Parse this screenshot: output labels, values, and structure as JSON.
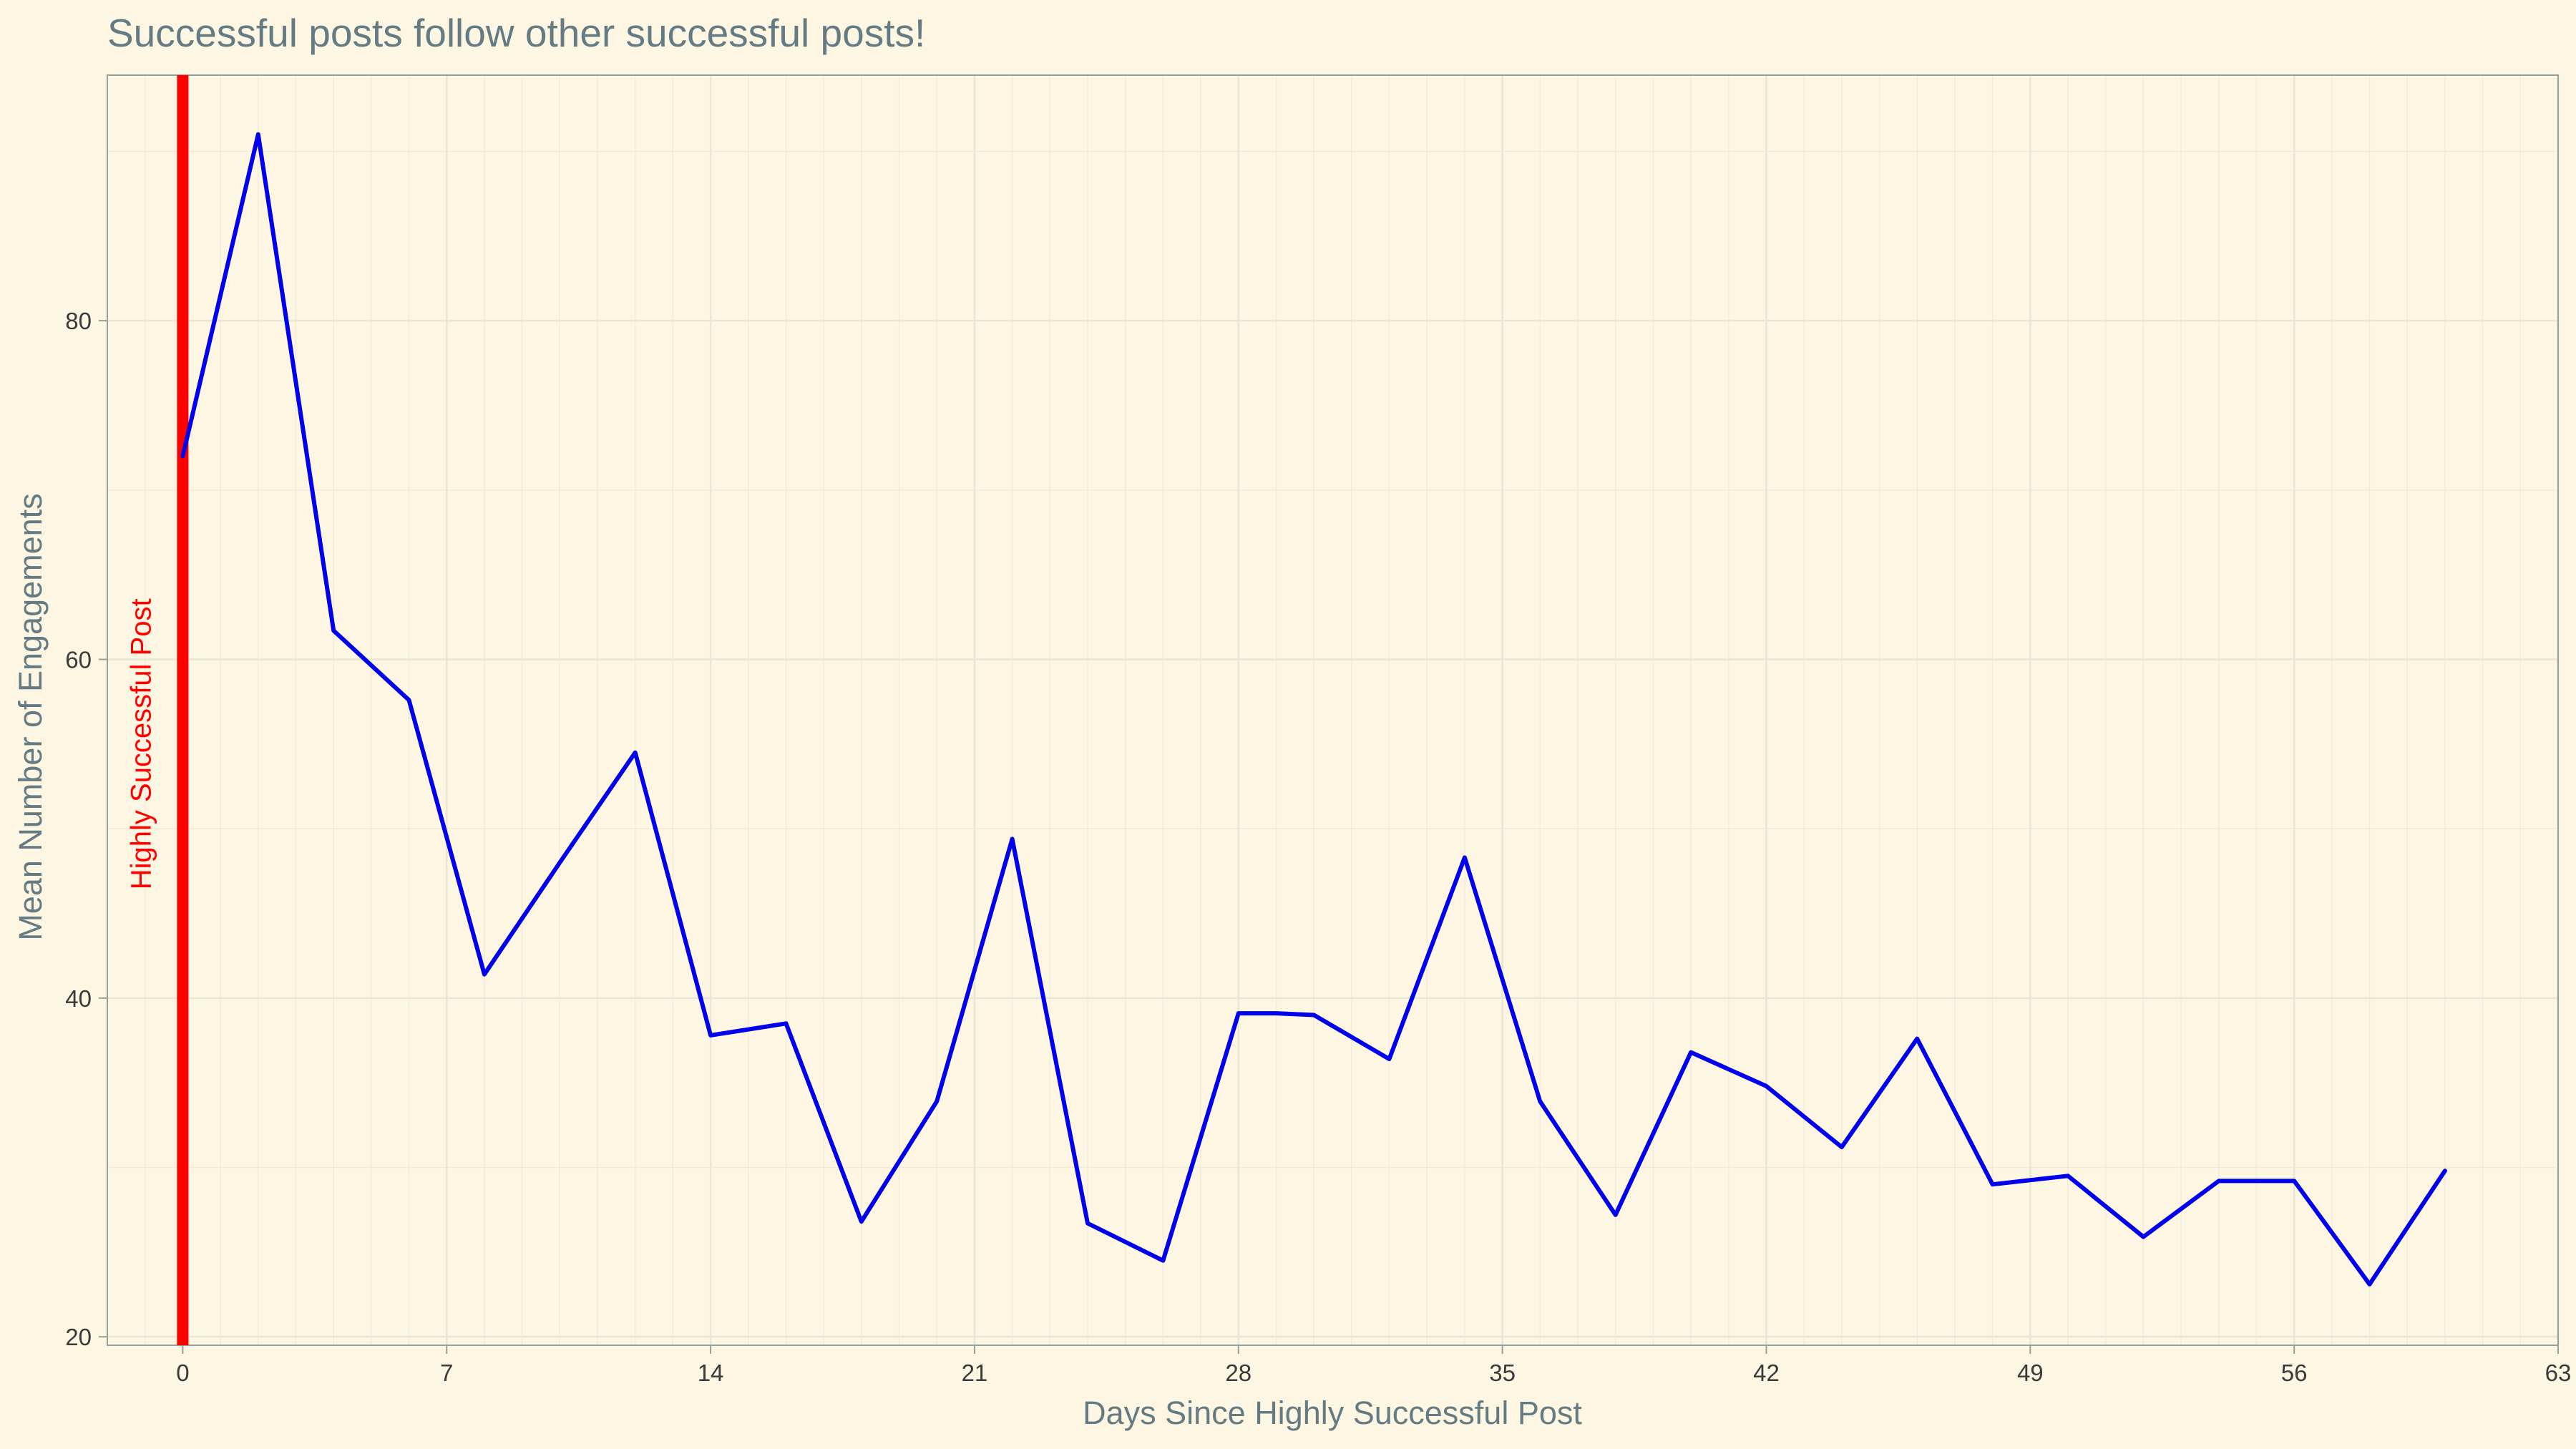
{
  "chart_data": {
    "type": "line",
    "title": "Successful posts follow other successful posts!",
    "xlabel": "Days Since Highly Successful Post",
    "ylabel": "Mean Number of Engagements",
    "xlim": [
      -2,
      63
    ],
    "ylim": [
      19.5,
      94.5
    ],
    "x_ticks": [
      0,
      7,
      14,
      21,
      28,
      35,
      42,
      49,
      56,
      63
    ],
    "y_ticks": [
      20,
      40,
      60,
      80
    ],
    "grid": true,
    "legend": "none",
    "annotation": {
      "x": 0,
      "label": "Highly Successful Post",
      "color": "#ff0000"
    },
    "series": [
      {
        "color": "#0000ee",
        "x": [
          0,
          2,
          4,
          6,
          8,
          10,
          12,
          14,
          16,
          18,
          20,
          22,
          24,
          26,
          28,
          29,
          30,
          32,
          34,
          36,
          38,
          40,
          42,
          44,
          46,
          48,
          50,
          52,
          54,
          56,
          58,
          60
        ],
        "values": [
          72,
          91,
          61.7,
          57.6,
          41.4,
          48,
          54.5,
          37.8,
          38.5,
          26.8,
          33.9,
          49.4,
          26.7,
          24.5,
          39.1,
          39.1,
          39,
          36.4,
          48.3,
          33.9,
          27.2,
          36.8,
          34.8,
          31.2,
          37.6,
          29,
          29.5,
          25.9,
          29.2,
          29.2,
          23.1,
          29.8
        ]
      }
    ]
  },
  "colors": {
    "background": "#fdf6e3",
    "grid": "#e9e6d7",
    "line": "#0000ee",
    "annotation": "#ff0000",
    "axis": "#93a1a1"
  }
}
